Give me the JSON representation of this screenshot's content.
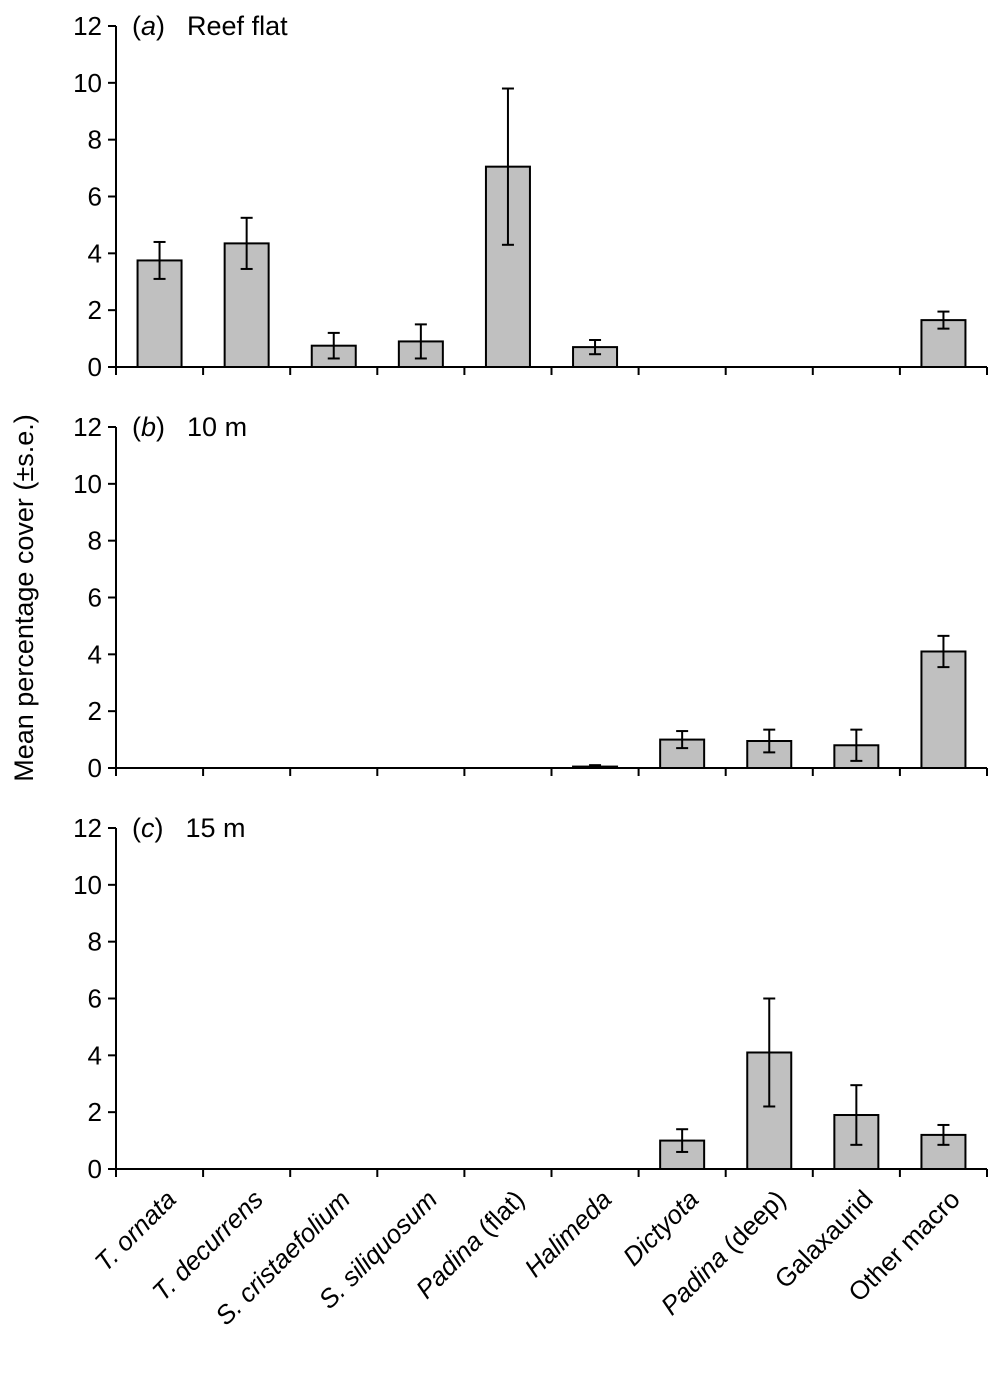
{
  "chart_data": {
    "type": "bar",
    "ylabel": "Mean percentage cover (±s.e.)",
    "ylim": [
      0,
      12
    ],
    "yticks": [
      0,
      2,
      4,
      6,
      8,
      10,
      12
    ],
    "categories": [
      {
        "prefix": "T. ",
        "name": "ornata",
        "suffix": ""
      },
      {
        "prefix": "T. ",
        "name": "decurrens",
        "suffix": ""
      },
      {
        "prefix": "S. ",
        "name": "cristaefolium",
        "suffix": ""
      },
      {
        "prefix": "S. ",
        "name": "siliquosum",
        "suffix": ""
      },
      {
        "prefix": "",
        "name": "Padina",
        "suffix": " (flat)"
      },
      {
        "prefix": "",
        "name": "Halimeda",
        "suffix": ""
      },
      {
        "prefix": "",
        "name": "Dictyota",
        "suffix": ""
      },
      {
        "prefix": "",
        "name": "Padina",
        "suffix": " (deep)"
      },
      {
        "prefix": "",
        "name": "Galaxaurid",
        "suffix": ""
      },
      {
        "prefix": "",
        "name": "Other macro",
        "suffix": ""
      }
    ],
    "category_italic": [
      true,
      true,
      true,
      true,
      true,
      true,
      true,
      true,
      false,
      false
    ],
    "panels": [
      {
        "letter": "a",
        "title": "Reef flat",
        "values": [
          3.75,
          4.35,
          0.75,
          0.9,
          7.05,
          0.7,
          0,
          0,
          0,
          1.65
        ],
        "errors": [
          0.65,
          0.9,
          0.45,
          0.6,
          2.75,
          0.25,
          0,
          0,
          0,
          0.3
        ]
      },
      {
        "letter": "b",
        "title": "10 m",
        "values": [
          0,
          0,
          0,
          0,
          0,
          0.05,
          1.0,
          0.95,
          0.8,
          4.1
        ],
        "errors": [
          0,
          0,
          0,
          0,
          0,
          0.05,
          0.3,
          0.4,
          0.55,
          0.55
        ]
      },
      {
        "letter": "c",
        "title": "15 m",
        "values": [
          0,
          0,
          0,
          0,
          0,
          0,
          1.0,
          4.1,
          1.9,
          1.2
        ],
        "errors": [
          0,
          0,
          0,
          0,
          0,
          0,
          0.4,
          1.9,
          1.05,
          0.35
        ]
      }
    ]
  }
}
